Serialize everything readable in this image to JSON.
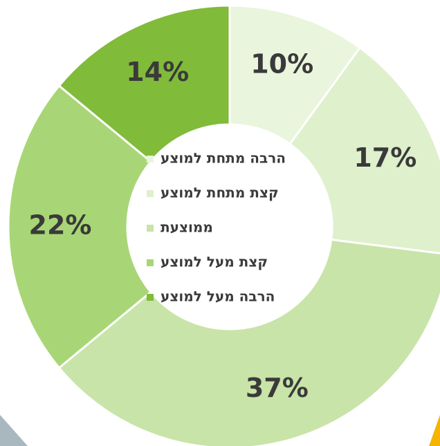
{
  "chart_data": {
    "type": "donut",
    "categories": [
      "הרבה מתחת למוצע",
      "קצת מתחת למוצע",
      "ממוצעת",
      "קצת מעל למוצע",
      "הרבה מעל למוצע"
    ],
    "values": [
      10,
      17,
      37,
      22,
      14
    ],
    "value_labels": [
      "10%",
      "17%",
      "37%",
      "22%",
      "14%"
    ],
    "colors": [
      "#e9f5dc",
      "#dff0cc",
      "#c8e4a8",
      "#a8d676",
      "#80bb3a"
    ],
    "legend": "center"
  }
}
